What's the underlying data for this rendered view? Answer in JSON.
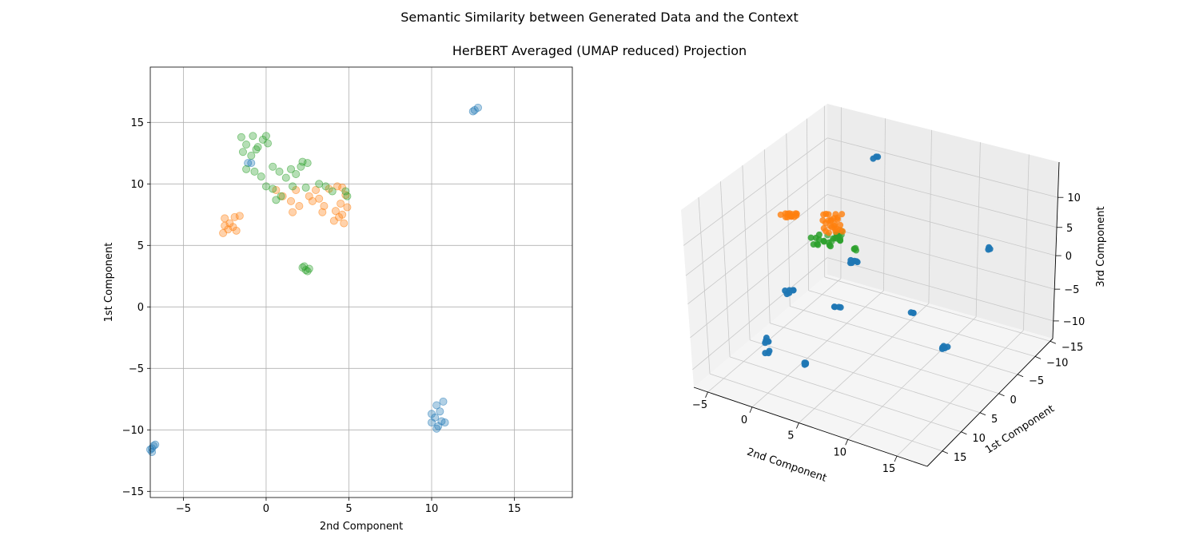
{
  "figure": {
    "title": "Semantic Similarity between Generated Data and the Context",
    "subtitle": "HerBERT Averaged (UMAP reduced) Projection"
  },
  "colors": {
    "blue": "#1f77b4",
    "orange": "#ff7f0e",
    "green": "#2ca02c"
  },
  "chart_data": [
    {
      "type": "scatter",
      "xlabel": "2nd Component",
      "ylabel": "1st Component",
      "xlim": [
        -7,
        18.5
      ],
      "ylim": [
        -15.5,
        19.5
      ],
      "xticks": [
        -5,
        0,
        5,
        10,
        15
      ],
      "yticks": [
        -15,
        -10,
        -5,
        0,
        5,
        10,
        15
      ],
      "grid": true,
      "series": [
        {
          "color": "blue",
          "points": [
            [
              12.6,
              16.0
            ],
            [
              12.8,
              16.2
            ],
            [
              12.5,
              15.9
            ],
            [
              -0.9,
              11.7
            ],
            [
              -1.1,
              11.7
            ],
            [
              -6.8,
              -11.3
            ],
            [
              -6.9,
              -11.5
            ],
            [
              -7.0,
              -11.6
            ],
            [
              -6.7,
              -11.2
            ],
            [
              -6.9,
              -11.8
            ],
            [
              10.0,
              -8.7
            ],
            [
              10.3,
              -8.0
            ],
            [
              10.5,
              -8.5
            ],
            [
              10.2,
              -9.0
            ],
            [
              10.6,
              -9.3
            ],
            [
              10.4,
              -9.7
            ],
            [
              10.0,
              -9.4
            ],
            [
              10.7,
              -7.7
            ],
            [
              10.3,
              -9.9
            ],
            [
              10.8,
              -9.4
            ]
          ]
        },
        {
          "color": "orange",
          "points": [
            [
              -2.5,
              7.2
            ],
            [
              -2.2,
              6.8
            ],
            [
              -2.6,
              6.0
            ],
            [
              -1.9,
              7.3
            ],
            [
              -2.3,
              6.3
            ],
            [
              -1.6,
              7.4
            ],
            [
              -2.0,
              6.5
            ],
            [
              -2.5,
              6.6
            ],
            [
              -1.8,
              6.2
            ],
            [
              1.8,
              9.5
            ],
            [
              1.5,
              8.6
            ],
            [
              2.0,
              8.2
            ],
            [
              1.6,
              7.7
            ],
            [
              2.6,
              9.0
            ],
            [
              3.0,
              9.5
            ],
            [
              3.2,
              8.8
            ],
            [
              3.5,
              8.2
            ],
            [
              3.8,
              9.6
            ],
            [
              4.3,
              9.8
            ],
            [
              4.6,
              9.7
            ],
            [
              4.8,
              9.1
            ],
            [
              4.5,
              8.4
            ],
            [
              4.2,
              7.8
            ],
            [
              4.4,
              7.3
            ],
            [
              4.7,
              6.8
            ],
            [
              4.9,
              8.1
            ],
            [
              4.1,
              7.0
            ],
            [
              1.0,
              9.0
            ],
            [
              0.6,
              9.5
            ],
            [
              3.4,
              7.7
            ],
            [
              4.6,
              7.5
            ],
            [
              2.8,
              8.6
            ]
          ]
        },
        {
          "color": "green",
          "points": [
            [
              -1.5,
              13.8
            ],
            [
              -1.2,
              13.2
            ],
            [
              -0.8,
              13.9
            ],
            [
              -0.5,
              13.0
            ],
            [
              -1.4,
              12.6
            ],
            [
              -0.9,
              12.3
            ],
            [
              -0.6,
              12.8
            ],
            [
              -1.2,
              11.2
            ],
            [
              -0.7,
              11.0
            ],
            [
              -0.3,
              10.6
            ],
            [
              0.0,
              13.9
            ],
            [
              -0.2,
              13.6
            ],
            [
              0.1,
              13.3
            ],
            [
              0.4,
              11.4
            ],
            [
              0.8,
              11.0
            ],
            [
              1.2,
              10.5
            ],
            [
              1.5,
              11.2
            ],
            [
              1.8,
              10.8
            ],
            [
              2.1,
              11.4
            ],
            [
              2.5,
              11.7
            ],
            [
              2.2,
              11.8
            ],
            [
              1.6,
              9.8
            ],
            [
              0.4,
              9.6
            ],
            [
              0.0,
              9.8
            ],
            [
              0.9,
              9.0
            ],
            [
              0.6,
              8.7
            ],
            [
              2.4,
              9.7
            ],
            [
              3.2,
              10.0
            ],
            [
              3.6,
              9.8
            ],
            [
              4.0,
              9.4
            ],
            [
              4.8,
              9.4
            ],
            [
              4.9,
              9.0
            ],
            [
              2.3,
              3.3
            ],
            [
              2.4,
              3.0
            ],
            [
              2.6,
              3.1
            ],
            [
              2.2,
              3.2
            ],
            [
              2.5,
              2.9
            ]
          ]
        }
      ]
    },
    {
      "type": "scatter",
      "subtype": "3d",
      "xlabel": "2nd Component",
      "ylabel": "1st Component",
      "zlabel": "3rd Component",
      "xticks": [
        -5,
        0,
        5,
        10,
        15
      ],
      "yticks": [
        15,
        10,
        5,
        0,
        -5,
        -10,
        -15
      ],
      "zticks": [
        10,
        5,
        0,
        -5,
        -10
      ],
      "grid": true
    }
  ]
}
